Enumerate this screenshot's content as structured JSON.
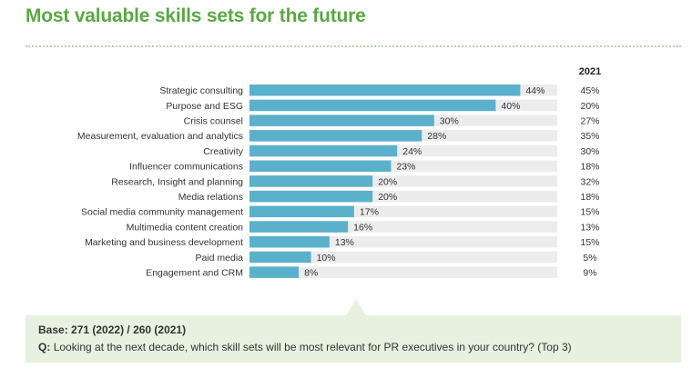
{
  "title": "Most valuable skills sets for the future",
  "chart_data": {
    "type": "bar",
    "orientation": "horizontal",
    "comparison_label": "2021",
    "xlim": [
      0,
      50
    ],
    "categories": [
      "Strategic consulting",
      "Purpose and ESG",
      "Crisis counsel",
      "Measurement, evaluation and analytics",
      "Creativity",
      "Influencer communications",
      "Research, Insight and planning",
      "Media relations",
      "Social media community management",
      "Multimedia content creation",
      "Marketing and business development",
      "Paid media",
      "Engagement and CRM"
    ],
    "series": [
      {
        "name": "2022",
        "values": [
          44,
          40,
          30,
          28,
          24,
          23,
          20,
          20,
          17,
          16,
          13,
          10,
          8
        ]
      },
      {
        "name": "2021",
        "values": [
          45,
          20,
          27,
          35,
          30,
          18,
          32,
          18,
          15,
          13,
          15,
          5,
          9
        ]
      }
    ],
    "colors": {
      "bar": "#5bb1cc",
      "track": "#ececec",
      "label": "#333333"
    }
  },
  "footer": {
    "base": "Base: 271 (2022) / 260 (2021)",
    "question_prefix": "Q:",
    "question": "Looking at the next decade, which skill sets will be most relevant for PR executives in your country? (Top 3)"
  }
}
